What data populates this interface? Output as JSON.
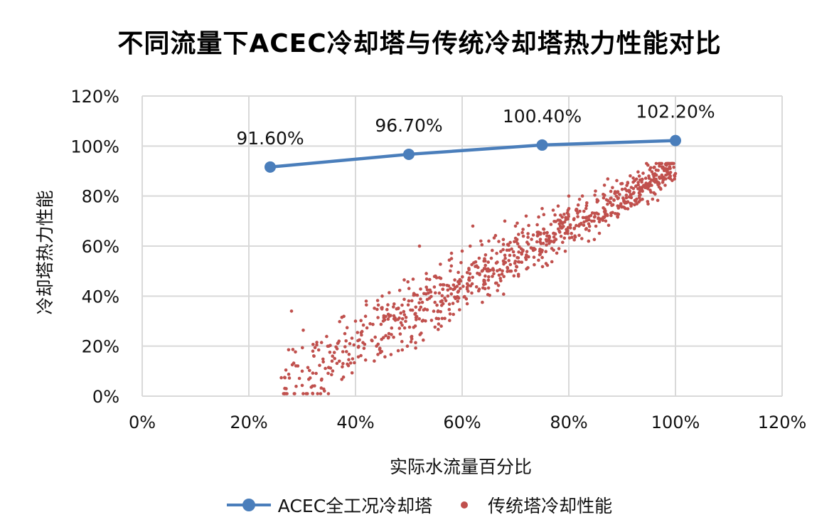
{
  "title": "不同流量下ACEC冷却塔与传统冷却塔热力性能对比",
  "colors": {
    "line_series": "#4a7ebb",
    "scatter_series": "#c0504d",
    "grid": "#d9d9d9"
  },
  "axes": {
    "x_label": "实际水流量百分比",
    "y_label": "冷却塔热力性能",
    "x_ticks": [
      "0%",
      "20%",
      "40%",
      "60%",
      "80%",
      "100%",
      "120%"
    ],
    "y_ticks": [
      "0%",
      "20%",
      "40%",
      "60%",
      "80%",
      "100%",
      "120%"
    ]
  },
  "legend": {
    "line_label": "ACEC全工况冷却塔",
    "scatter_label": "传统塔冷却性能"
  },
  "chart_data": {
    "type": "line+scatter",
    "title": "不同流量下ACEC冷却塔与传统冷却塔热力性能对比",
    "xlabel": "实际水流量百分比",
    "ylabel": "冷却塔热力性能",
    "xlim": [
      0,
      120
    ],
    "ylim": [
      0,
      120
    ],
    "x_tick_step": 20,
    "y_tick_step": 20,
    "grid": true,
    "legend_position": "bottom",
    "series": [
      {
        "name": "ACEC全工况冷却塔",
        "type": "line",
        "markers": true,
        "x": [
          24,
          50,
          75,
          100
        ],
        "y": [
          91.6,
          96.7,
          100.4,
          102.2
        ],
        "data_labels": [
          "91.60%",
          "96.70%",
          "100.40%",
          "102.20%"
        ]
      },
      {
        "name": "传统塔冷却性能",
        "type": "scatter",
        "description": "~900 points; roughly linear band from (27%, ~5%) to (100%, ~90%), spread ±15 points widening at low flow",
        "x_range": [
          26,
          101
        ],
        "y_range": [
          1,
          93
        ],
        "trend": {
          "slope": 1.2,
          "intercept": -28
        },
        "sample_points": [
          [
            27,
            3
          ],
          [
            28,
            34
          ],
          [
            30,
            10
          ],
          [
            32,
            18
          ],
          [
            35,
            20
          ],
          [
            38,
            25
          ],
          [
            40,
            30
          ],
          [
            42,
            38
          ],
          [
            45,
            40
          ],
          [
            48,
            35
          ],
          [
            52,
            60
          ],
          [
            55,
            48
          ],
          [
            58,
            55
          ],
          [
            60,
            58
          ],
          [
            62,
            68
          ],
          [
            65,
            62
          ],
          [
            68,
            70
          ],
          [
            70,
            68
          ],
          [
            72,
            72
          ],
          [
            75,
            75
          ],
          [
            78,
            76
          ],
          [
            80,
            80
          ],
          [
            85,
            82
          ],
          [
            90,
            85
          ],
          [
            95,
            88
          ],
          [
            97,
            92
          ],
          [
            100,
            89
          ]
        ]
      }
    ]
  }
}
